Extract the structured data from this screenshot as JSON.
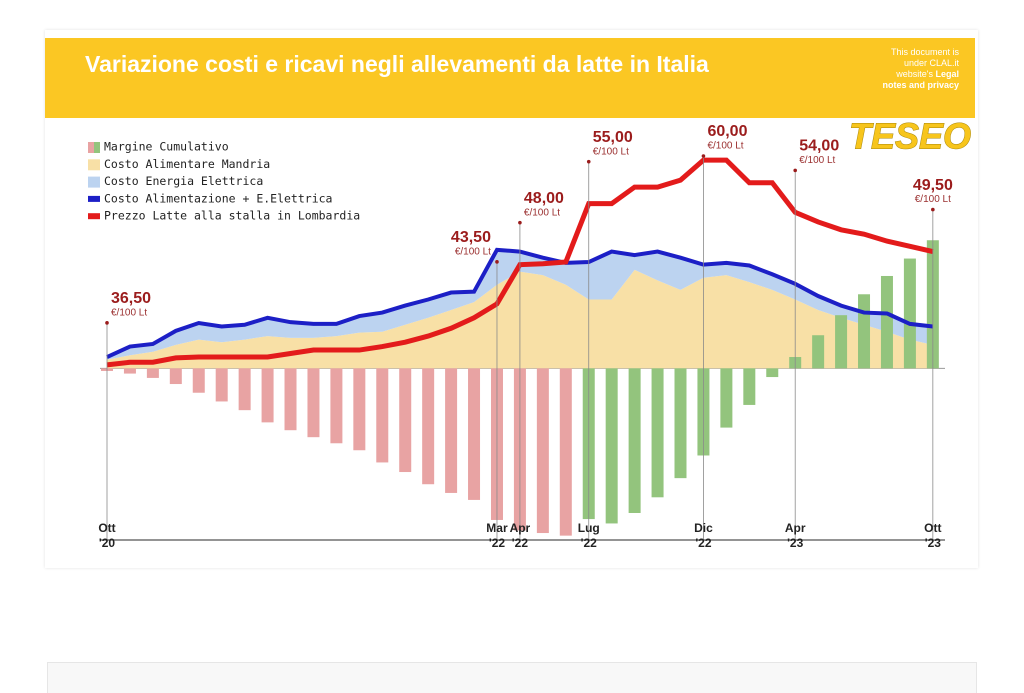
{
  "header": {
    "title": "Variazione costi e ricavi negli allevamenti da latte in Italia",
    "notice": "This document is under CLAL.it website's",
    "notice_link": "Legal notes and privacy"
  },
  "logo": "TESEO",
  "chart_data": {
    "type": "combo",
    "categories": [
      "Ott\n'20",
      null,
      null,
      null,
      null,
      null,
      null,
      null,
      null,
      null,
      null,
      null,
      null,
      null,
      null,
      null,
      null,
      "Mar\n'22",
      "Apr\n'22",
      null,
      null,
      "Lug\n'22",
      null,
      null,
      null,
      null,
      "Dic\n'22",
      null,
      null,
      null,
      "Apr\n'23",
      null,
      null,
      null,
      null,
      null,
      "Ott\n'23"
    ],
    "unit_label": "€/100 Lt",
    "ylim": [
      16.4,
      64.6
    ],
    "y2lim": [
      -19.7,
      28.5
    ],
    "series": [
      {
        "name": "Margine Cumulativo",
        "type": "bar",
        "axis": "y2",
        "colors": [
          "#e8a3a3",
          "#e8a3a3",
          "#e8a3a3",
          "#e8a3a3",
          "#e8a3a3",
          "#e8a3a3",
          "#e8a3a3",
          "#e8a3a3",
          "#e8a3a3",
          "#e8a3a3",
          "#e8a3a3",
          "#e8a3a3",
          "#e8a3a3",
          "#e8a3a3",
          "#e8a3a3",
          "#e8a3a3",
          "#e8a3a3",
          "#e8a3a3",
          "#e8a3a3",
          "#e8a3a3",
          "#e8a3a3",
          "#93c47d",
          "#93c47d",
          "#93c47d",
          "#93c47d",
          "#93c47d",
          "#93c47d",
          "#93c47d",
          "#93c47d",
          "#93c47d",
          "#93c47d",
          "#93c47d",
          "#93c47d",
          "#93c47d",
          "#93c47d",
          "#93c47d",
          "#93c47d"
        ],
        "values": [
          -0.3,
          -0.6,
          -1.1,
          -1.8,
          -2.8,
          -3.8,
          -4.8,
          -6.2,
          -7.1,
          -7.9,
          -8.6,
          -9.4,
          -10.8,
          -11.9,
          -13.3,
          -14.3,
          -15.1,
          -17.4,
          -18.6,
          -18.9,
          -19.2,
          -17.3,
          -17.8,
          -16.6,
          -14.8,
          -12.6,
          -10.0,
          -6.8,
          -4.2,
          -1.0,
          1.3,
          3.8,
          6.1,
          8.5,
          10.6,
          12.6,
          14.7
        ]
      },
      {
        "name": "Costo Alimentare Mandria",
        "type": "area",
        "color": "#f8e0a6",
        "values": [
          37.1,
          37.6,
          38.0,
          38.8,
          39.4,
          39.1,
          39.4,
          39.8,
          39.6,
          39.6,
          39.8,
          40.2,
          40.3,
          41.1,
          41.9,
          42.8,
          43.7,
          45.7,
          47.2,
          46.8,
          45.7,
          44.0,
          44.0,
          47.4,
          46.2,
          45.1,
          46.5,
          46.8,
          46.0,
          45.1,
          44.0,
          42.8,
          41.9,
          41.1,
          40.3,
          39.4,
          38.8
        ]
      },
      {
        "name": "Costo Energia Elettrica",
        "type": "area",
        "stack": true,
        "color": "#bcd3f0",
        "values": [
          0.3,
          1.0,
          0.9,
          1.6,
          1.9,
          1.8,
          1.7,
          2.1,
          1.8,
          1.6,
          1.4,
          1.9,
          2.2,
          2.2,
          2.1,
          2.0,
          1.2,
          4.0,
          2.3,
          2.0,
          2.5,
          4.3,
          5.5,
          1.7,
          3.3,
          3.7,
          1.5,
          1.4,
          1.9,
          1.8,
          1.8,
          1.6,
          1.4,
          1.4,
          2.1,
          1.8,
          2.1
        ]
      },
      {
        "name": "Costo Alimentazione + E.Elettrica",
        "type": "line",
        "color": "#1c1fc6",
        "values": [
          37.4,
          38.6,
          38.9,
          40.4,
          41.3,
          40.9,
          41.1,
          41.9,
          41.4,
          41.2,
          41.2,
          42.1,
          42.5,
          43.3,
          44.0,
          44.8,
          44.9,
          49.7,
          49.5,
          48.8,
          48.2,
          48.3,
          49.5,
          49.1,
          49.5,
          48.8,
          48.0,
          48.2,
          47.9,
          46.9,
          45.8,
          44.4,
          43.3,
          42.5,
          42.4,
          41.2,
          40.9
        ]
      },
      {
        "name": "Prezzo Latte alla stalla in Lombardia",
        "type": "line",
        "color": "#e31b1b",
        "values": [
          36.5,
          36.8,
          36.8,
          37.3,
          37.4,
          37.4,
          37.4,
          37.4,
          37.8,
          38.2,
          38.2,
          38.2,
          38.6,
          39.1,
          39.8,
          40.7,
          41.9,
          43.5,
          48.0,
          48.1,
          48.3,
          55.0,
          55.0,
          56.9,
          56.9,
          57.7,
          60.0,
          60.0,
          57.4,
          57.4,
          54.0,
          52.9,
          52.0,
          51.5,
          50.7,
          50.1,
          49.5
        ],
        "value_labels": [
          "36,50",
          null,
          null,
          null,
          null,
          null,
          null,
          null,
          null,
          null,
          null,
          null,
          null,
          null,
          null,
          null,
          null,
          "43,50",
          "48,00",
          null,
          null,
          "55,00",
          null,
          null,
          null,
          null,
          "60,00",
          null,
          null,
          null,
          "54,00",
          null,
          null,
          null,
          null,
          null,
          "49,50"
        ]
      }
    ]
  }
}
